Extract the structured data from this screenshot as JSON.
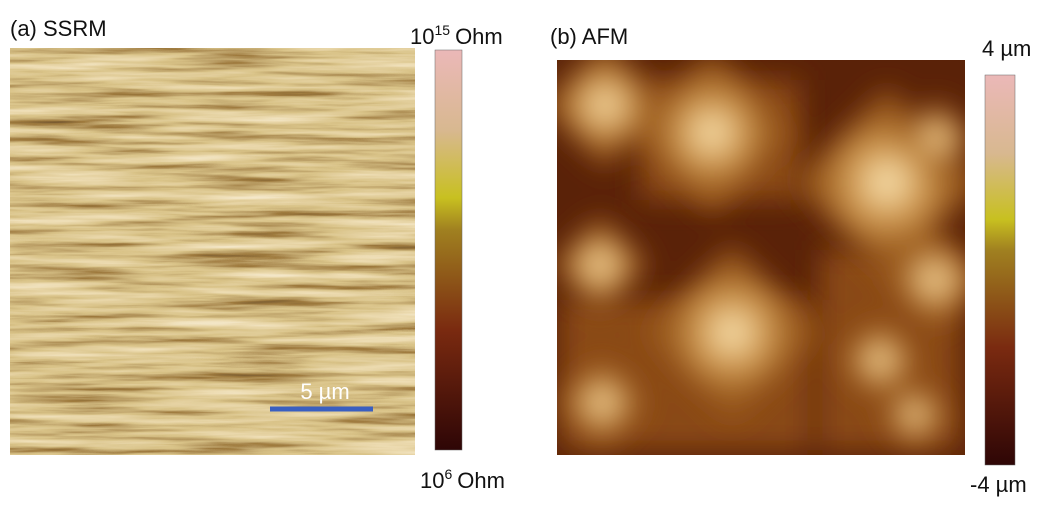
{
  "panel_a": {
    "label": "(a) SSRM",
    "colorbar_max": {
      "base": "10",
      "exponent": "15",
      "unit": "Ohm"
    },
    "colorbar_min": {
      "base": "10",
      "exponent": "6",
      "unit": "Ohm"
    },
    "scale_bar": "5 µm"
  },
  "panel_b": {
    "label": "(b) AFM",
    "colorbar_max": "4 µm",
    "colorbar_min": "-4 µm"
  }
}
